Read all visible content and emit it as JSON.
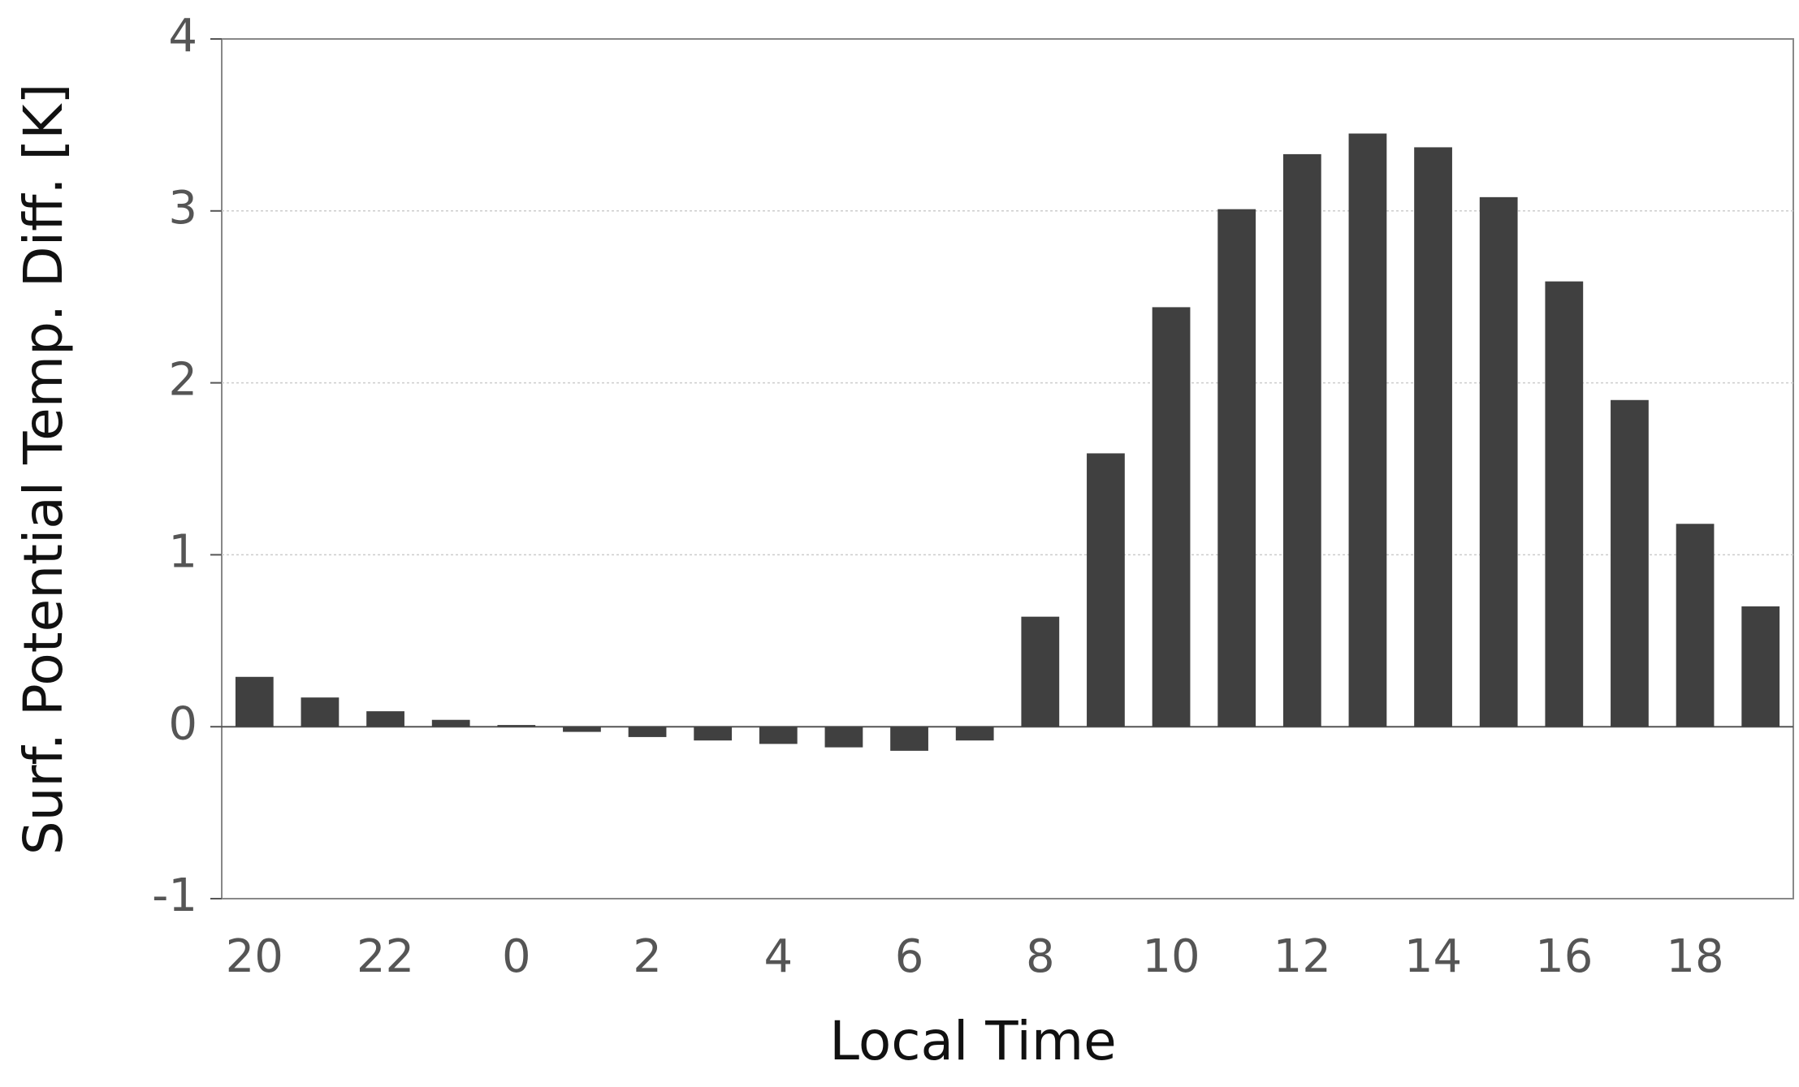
{
  "chart_data": {
    "type": "bar",
    "x_label": "Local Time",
    "y_label": "Surf. Potential Temp. Diff. [K]",
    "categories": [
      "20",
      null,
      "22",
      null,
      "0",
      null,
      "2",
      null,
      "4",
      null,
      "6",
      null,
      "8",
      null,
      "10",
      null,
      "12",
      null,
      "14",
      null,
      "16",
      null,
      "18",
      null
    ],
    "values": [
      0.29,
      0.17,
      0.09,
      0.04,
      0.01,
      -0.03,
      -0.06,
      -0.08,
      -0.1,
      -0.12,
      -0.14,
      -0.08,
      0.64,
      1.59,
      2.44,
      3.01,
      3.33,
      3.45,
      3.37,
      3.08,
      2.59,
      1.9,
      1.18,
      0.7
    ],
    "color": "#404040",
    "ylim": [
      -1,
      4
    ],
    "yticks": [
      -1,
      0,
      1,
      2,
      3,
      4
    ],
    "grid": true
  }
}
